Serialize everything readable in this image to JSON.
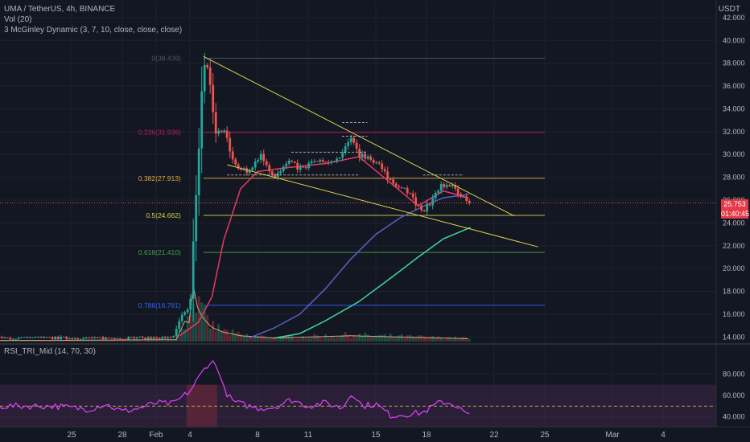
{
  "header": {
    "title": "UMA / TetherUS, 4h, BINANCE",
    "indicator1": "3 McGinley Dynamic (3, 7, 10, close, close, close)",
    "volume": "Vol (20)",
    "rsi": "RSI_TRI_Mid (14, 70, 30)",
    "currency": "USDT"
  },
  "price_badge": {
    "value": "25.753",
    "timer": "01:40:45"
  },
  "colors": {
    "background": "#131722",
    "up": "#26a69a",
    "down": "#ef5350",
    "trendline": "#d8d14c",
    "fib_0": "#787b86",
    "fib_236": "#c2185b",
    "fib_382": "#e0a73a",
    "fib_5": "#d8d14c",
    "fib_618": "#43a047",
    "fib_786": "#2962ff",
    "rsi_line": "#e040fb",
    "rsi_band": "#4a2a55"
  },
  "chart_data": {
    "type": "candlestick",
    "title": "UMA / TetherUS, 4h, BINANCE",
    "x_ticks": [
      "25",
      "28",
      "Feb",
      "4",
      "8",
      "11",
      "15",
      "18",
      "22",
      "25",
      "Mar",
      "4"
    ],
    "y_ticks": [
      "42.000",
      "40.000",
      "38.000",
      "36.000",
      "34.000",
      "32.000",
      "30.000",
      "28.000",
      "26.000",
      "24.000",
      "22.000",
      "20.000",
      "18.000",
      "16.000",
      "14.000"
    ],
    "ylim": [
      13.6,
      43.4
    ],
    "fib_levels": [
      {
        "label": "0(38.439)",
        "value": 38.439
      },
      {
        "label": "0.236(31.936)",
        "value": 31.936
      },
      {
        "label": "0.382(27.913)",
        "value": 27.913
      },
      {
        "label": "0.5(24.662)",
        "value": 24.662
      },
      {
        "label": "0.618(21.410)",
        "value": 21.41
      },
      {
        "label": "0.786(16.781)",
        "value": 16.781
      }
    ],
    "trendlines": [
      {
        "from": [
          3.8,
          38.6
        ],
        "to": [
          22.2,
          24.6
        ]
      },
      {
        "from": [
          5.2,
          29.1
        ],
        "to": [
          23.6,
          21.9
        ]
      }
    ],
    "price_keypoints": [
      [
        -5,
        13.9
      ],
      [
        2.0,
        13.9
      ],
      [
        2.5,
        15.8
      ],
      [
        3.0,
        16.5
      ],
      [
        3.2,
        22.5
      ],
      [
        3.5,
        29.5
      ],
      [
        3.8,
        38.2
      ],
      [
        4.1,
        37.5
      ],
      [
        4.5,
        31.8
      ],
      [
        5.0,
        32.2
      ],
      [
        5.6,
        29.2
      ],
      [
        6.4,
        28.4
      ],
      [
        7.2,
        30.1
      ],
      [
        8.0,
        27.9
      ],
      [
        8.8,
        29.3
      ],
      [
        9.6,
        28.7
      ],
      [
        10.5,
        29.5
      ],
      [
        11.3,
        29.1
      ],
      [
        12.0,
        29.9
      ],
      [
        12.6,
        31.6
      ],
      [
        13.0,
        30.0
      ],
      [
        13.5,
        29.8
      ],
      [
        14.2,
        29.2
      ],
      [
        14.8,
        27.6
      ],
      [
        15.5,
        27.3
      ],
      [
        16.2,
        26.2
      ],
      [
        16.7,
        24.9
      ],
      [
        17.3,
        25.8
      ],
      [
        17.8,
        27.3
      ],
      [
        18.6,
        27.1
      ],
      [
        19.5,
        25.75
      ]
    ],
    "mcginley_fast": [
      [
        2.4,
        14.1
      ],
      [
        3.5,
        15.3
      ],
      [
        4.3,
        17.5
      ],
      [
        5.0,
        22.5
      ],
      [
        6.0,
        27.0
      ],
      [
        7.0,
        28.5
      ],
      [
        8.5,
        28.8
      ],
      [
        11.0,
        29.2
      ],
      [
        13.0,
        29.8
      ],
      [
        14.8,
        27.6
      ],
      [
        16.5,
        25.5
      ],
      [
        18.0,
        26.8
      ],
      [
        19.5,
        26.2
      ]
    ],
    "mcginley_mid": [
      [
        6.5,
        13.9
      ],
      [
        8.0,
        14.8
      ],
      [
        9.5,
        16.0
      ],
      [
        11.0,
        18.2
      ],
      [
        12.5,
        20.8
      ],
      [
        14.0,
        23.0
      ],
      [
        15.5,
        24.5
      ],
      [
        17.0,
        25.6
      ],
      [
        18.0,
        26.2
      ],
      [
        19.5,
        26.5
      ]
    ],
    "mcginley_slow": [
      [
        8.0,
        13.9
      ],
      [
        9.5,
        14.3
      ],
      [
        11.0,
        15.4
      ],
      [
        13.0,
        17.1
      ],
      [
        15.0,
        19.3
      ],
      [
        16.5,
        21.0
      ],
      [
        18.0,
        22.6
      ],
      [
        19.6,
        23.6
      ]
    ],
    "rsi": {
      "y_ticks": [
        "80.000",
        "60.000",
        "40.000"
      ],
      "ylim": [
        33,
        93
      ],
      "midline": 50,
      "band": [
        30,
        70
      ],
      "keypoints": [
        [
          -5,
          50
        ],
        [
          -3,
          47
        ],
        [
          -2,
          52
        ],
        [
          -1,
          45
        ],
        [
          0,
          48
        ],
        [
          1,
          53
        ],
        [
          2,
          52
        ],
        [
          2.5,
          58
        ],
        [
          3.0,
          64
        ],
        [
          3.5,
          76
        ],
        [
          4.0,
          88
        ],
        [
          4.3,
          92
        ],
        [
          4.7,
          84
        ],
        [
          5.0,
          66
        ],
        [
          5.5,
          55
        ],
        [
          6.0,
          52
        ],
        [
          7.0,
          48
        ],
        [
          8.0,
          49
        ],
        [
          9.0,
          56
        ],
        [
          10.0,
          50
        ],
        [
          11.0,
          53
        ],
        [
          12.0,
          48
        ],
        [
          12.6,
          63
        ],
        [
          13.2,
          50
        ],
        [
          14.0,
          52
        ],
        [
          14.9,
          41
        ],
        [
          15.5,
          42
        ],
        [
          16.2,
          43
        ],
        [
          16.8,
          44
        ],
        [
          17.4,
          50
        ],
        [
          17.9,
          54
        ],
        [
          18.6,
          52
        ],
        [
          19.5,
          41
        ]
      ]
    },
    "volume_keypoints": [
      [
        -5,
        0.05
      ],
      [
        2.3,
        0.08
      ],
      [
        2.6,
        0.9
      ],
      [
        3.0,
        0.8
      ],
      [
        3.2,
        2.4
      ],
      [
        3.5,
        1.3
      ],
      [
        3.8,
        1.0
      ],
      [
        4.3,
        0.6
      ],
      [
        5.0,
        0.4
      ],
      [
        6.0,
        0.25
      ],
      [
        8.0,
        0.15
      ],
      [
        12.5,
        0.25
      ],
      [
        19.6,
        0.12
      ]
    ]
  }
}
